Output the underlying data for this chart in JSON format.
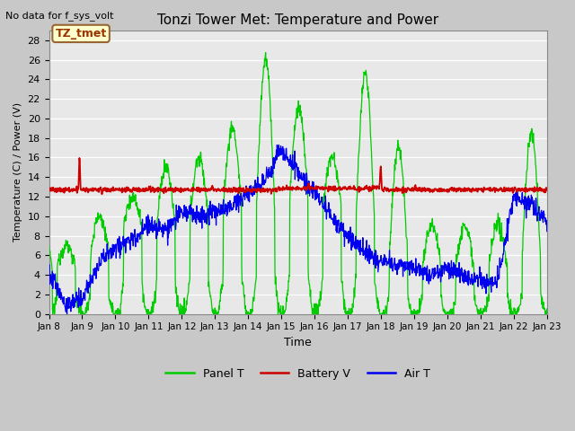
{
  "title": "Tonzi Tower Met: Temperature and Power",
  "subtitle": "No data for f_sys_volt",
  "xlabel": "Time",
  "ylabel": "Temperature (C) / Power (V)",
  "ylim": [
    0,
    29
  ],
  "yticks": [
    0,
    2,
    4,
    6,
    8,
    10,
    12,
    14,
    16,
    18,
    20,
    22,
    24,
    26,
    28
  ],
  "x_labels": [
    "Jan 8",
    "Jan 9",
    "Jan 10",
    "Jan 11",
    "Jan 12",
    "Jan 13",
    "Jan 14",
    "Jan 15",
    "Jan 16",
    "Jan 17",
    "Jan 18",
    "Jan 19",
    "Jan 20",
    "Jan 21",
    "Jan 22",
    "Jan 23"
  ],
  "panel_color": "#00CC00",
  "battery_color": "#CC0000",
  "air_color": "#0000EE",
  "plot_bg_color": "#E8E8E8",
  "fig_bg_color": "#C8C8C8",
  "legend_labels": [
    "Panel T",
    "Battery V",
    "Air T"
  ],
  "tag_label": "TZ_tmet",
  "tag_color": "#993300",
  "tag_bg": "#FFFFCC",
  "tag_border": "#996633"
}
